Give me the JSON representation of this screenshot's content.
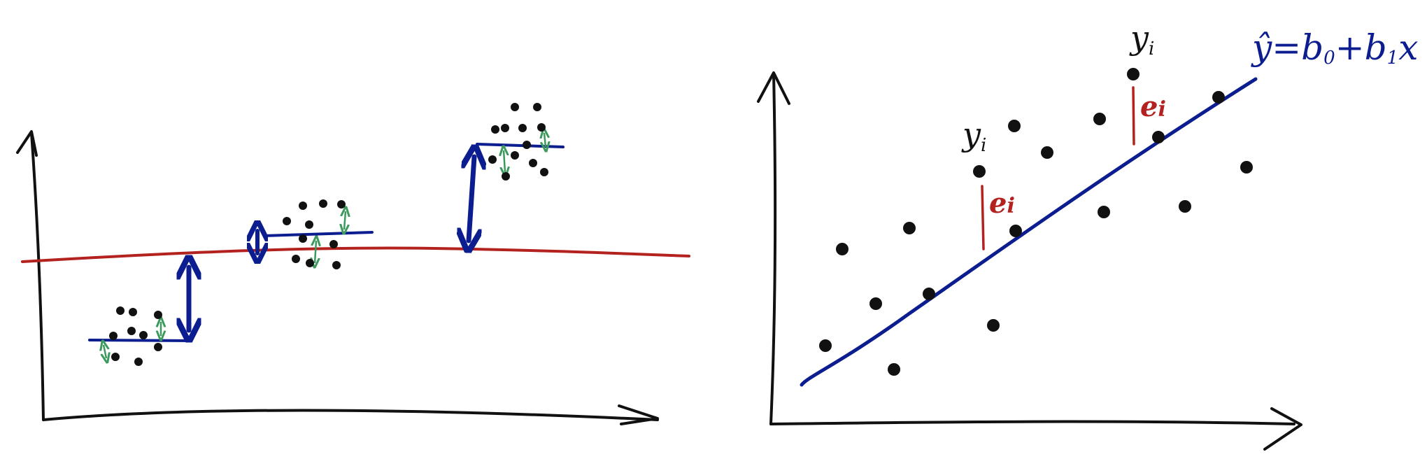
{
  "colors": {
    "ink": "#111111",
    "blue": "#0b1d8f",
    "red": "#b3221f",
    "green": "#3c9a5c",
    "background": "#ffffff"
  },
  "left_panel": {
    "description_free": true,
    "groups": 3
  },
  "right_panel": {
    "observed_label_1": "y",
    "observed_label_1_sub": "i",
    "observed_label_2": "y",
    "observed_label_2_sub": "i",
    "residual_label_1": "e",
    "residual_label_1_sub": "i",
    "residual_label_2": "e",
    "residual_label_2_sub": "i",
    "equation": {
      "lhs": "ŷ",
      "eq": "=",
      "b0": "b",
      "b0_sub": "0",
      "plus": "+",
      "b1": "b",
      "b1_sub": "1",
      "x": "x"
    }
  }
}
